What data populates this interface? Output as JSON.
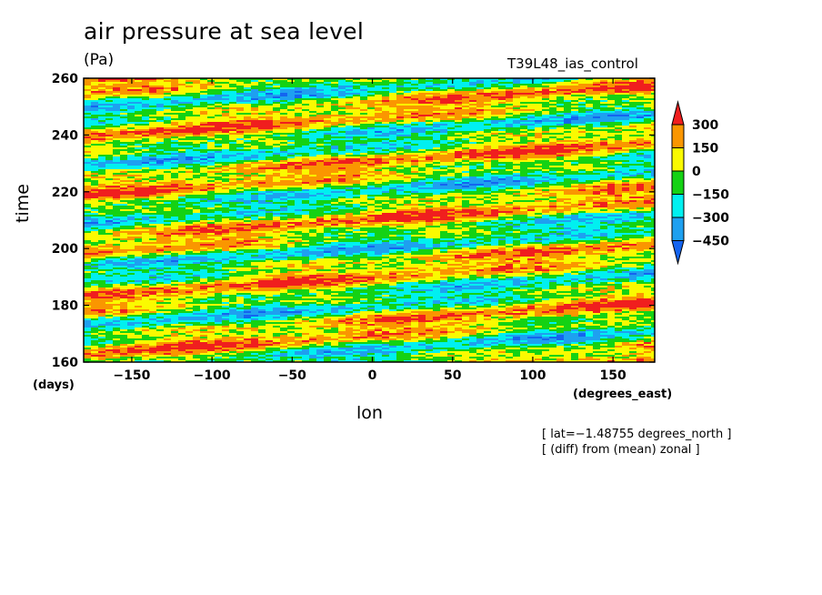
{
  "chart_data": {
    "type": "heatmap",
    "title": "air pressure at sea level",
    "units": "(Pa)",
    "run_name": "T39L48_ias_control",
    "xlabel": "lon",
    "xunits": "(degrees_east)",
    "ylabel": "time",
    "yunits": "(days)",
    "xlim": [
      -180,
      176
    ],
    "ylim": [
      160,
      260
    ],
    "x_ticks": [
      -150,
      -100,
      -50,
      0,
      50,
      100,
      150
    ],
    "y_ticks": [
      160,
      180,
      200,
      220,
      240,
      260
    ],
    "colorbar": {
      "levels": [
        -450,
        -300,
        -150,
        0,
        150,
        300
      ],
      "tick_labels": [
        "300",
        "150",
        "0",
        "−150",
        "−300",
        "−450"
      ],
      "colors": [
        "#1464f0",
        "#1ea0f0",
        "#00f0f0",
        "#14d214",
        "#fafa00",
        "#fa9600",
        "#f01e1e"
      ],
      "extend": "both"
    },
    "annotations": [
      "[ lat=−1.48755 degrees_north ]",
      "[ (diff) from (mean) zonal ]"
    ],
    "pattern": "eastward-propagating anomaly bands (positive red/orange, negative blue) drifting upward with increasing longitude"
  }
}
